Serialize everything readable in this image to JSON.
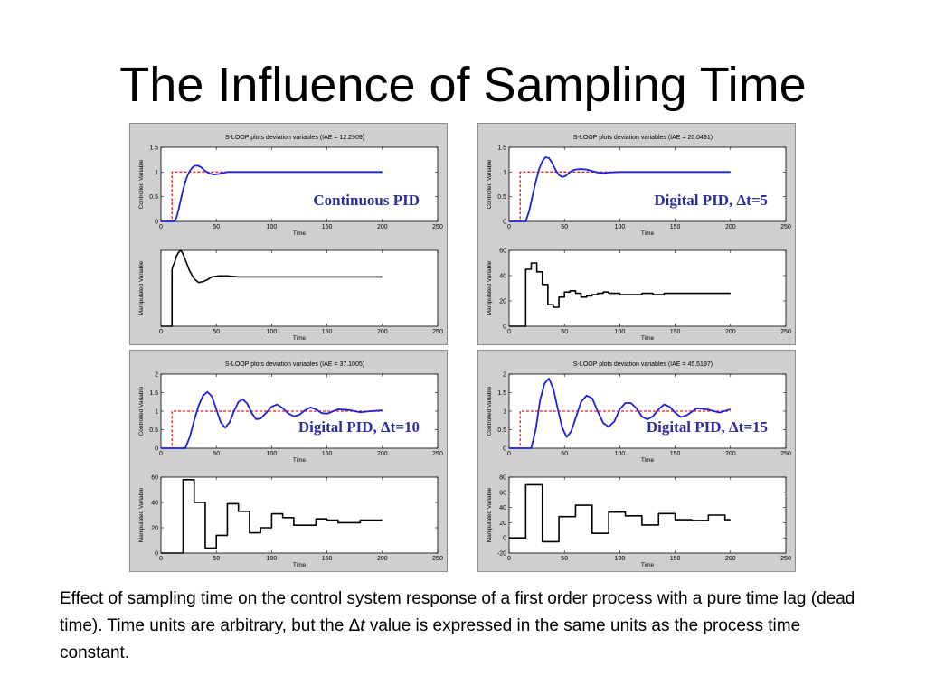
{
  "title": "The Influence of Sampling Time",
  "caption": {
    "part1": "Effect of sampling time on the control system response of a first order process with a pure time lag (dead time). Time units are arbitrary, but the Δ",
    "part2": "t",
    "part3": "  value is expressed in the same units as the process time constant."
  },
  "colors": {
    "controlled": "#1f1fd6",
    "setpoint": "#e02020",
    "manipulated": "#000000",
    "panel_bg": "#cfcfcf",
    "axes_bg": "#ffffff"
  },
  "chart_data": [
    {
      "type": "line",
      "panel_title": "S-LOOP plots deviation variables (IAE = 12.2909)",
      "annotation": "Continuous PID",
      "top": {
        "ylabel": "Controlled Variable",
        "xlabel": "Time",
        "xlim": [
          0,
          250
        ],
        "ylim": [
          0,
          1.5
        ],
        "xticks": [
          "0",
          "50",
          "100",
          "150",
          "200",
          "250"
        ],
        "yticks": [
          "0",
          "0.5",
          "1",
          "1.5"
        ],
        "setpoint": {
          "x": [
            0,
            10,
            10,
            200
          ],
          "y": [
            0,
            0,
            1,
            1
          ]
        },
        "controlled": {
          "x": [
            0,
            12,
            14,
            16,
            18,
            20,
            22,
            24,
            26,
            28,
            30,
            33,
            36,
            38,
            40,
            44,
            48,
            52,
            56,
            60,
            70,
            80,
            100,
            130,
            160,
            200
          ],
          "y": [
            0,
            0,
            0.08,
            0.25,
            0.45,
            0.64,
            0.8,
            0.93,
            1.02,
            1.08,
            1.12,
            1.13,
            1.1,
            1.06,
            1.02,
            0.97,
            0.95,
            0.96,
            0.98,
            1.0,
            1.0,
            1.0,
            1.0,
            1.0,
            1.0,
            1.0
          ]
        }
      },
      "bottom": {
        "ylabel": "Manipulated Variable",
        "xlabel": "Time",
        "xlim": [
          0,
          250
        ],
        "ylim": [
          0,
          40
        ],
        "xticks": [
          "0",
          "50",
          "100",
          "150",
          "200",
          "250"
        ],
        "yticks": [],
        "manipulated": {
          "x": [
            0,
            10,
            10,
            11,
            12,
            13,
            14,
            16,
            18,
            20,
            22,
            26,
            30,
            34,
            38,
            42,
            46,
            52,
            60,
            70,
            90,
            120,
            160,
            200
          ],
          "y": [
            0,
            0,
            30,
            32,
            33,
            35,
            37,
            39,
            40,
            38,
            35,
            29,
            25,
            23,
            23.5,
            24.5,
            26,
            26.5,
            26.5,
            26,
            26,
            26,
            26,
            26
          ]
        }
      }
    },
    {
      "type": "line",
      "panel_title": "S-LOOP plots deviation variables (IAE = 20.0491)",
      "annotation": "Digital PID, Δt=5",
      "top": {
        "ylabel": "Controlled Variable",
        "xlabel": "Time",
        "xlim": [
          0,
          250
        ],
        "ylim": [
          0,
          1.5
        ],
        "xticks": [
          "0",
          "50",
          "100",
          "150",
          "200",
          "250"
        ],
        "yticks": [
          "0",
          "0.5",
          "1",
          "1.5"
        ],
        "setpoint": {
          "x": [
            0,
            10,
            10,
            200
          ],
          "y": [
            0,
            0,
            1,
            1
          ]
        },
        "controlled": {
          "x": [
            0,
            15,
            18,
            21,
            24,
            27,
            30,
            33,
            36,
            39,
            42,
            45,
            48,
            51,
            54,
            57,
            60,
            65,
            70,
            75,
            80,
            85,
            90,
            100,
            110,
            120,
            140,
            160,
            200
          ],
          "y": [
            0,
            0,
            0.2,
            0.5,
            0.8,
            1.05,
            1.22,
            1.3,
            1.28,
            1.18,
            1.04,
            0.94,
            0.9,
            0.92,
            0.98,
            1.03,
            1.05,
            1.06,
            1.05,
            1.02,
            0.99,
            0.98,
            0.99,
            1.0,
            1.0,
            1.0,
            1.0,
            1.0,
            1.0
          ]
        }
      },
      "bottom": {
        "ylabel": "Manipulated Variable",
        "xlabel": "Time",
        "xlim": [
          0,
          250
        ],
        "ylim": [
          0,
          60
        ],
        "xticks": [
          "0",
          "50",
          "100",
          "150",
          "200",
          "250"
        ],
        "yticks": [
          "0",
          "20",
          "40",
          "60"
        ],
        "manipulated": {
          "steps": [
            [
              0,
              0
            ],
            [
              10,
              0
            ],
            [
              15,
              45
            ],
            [
              20,
              50
            ],
            [
              25,
              43
            ],
            [
              30,
              33
            ],
            [
              35,
              17
            ],
            [
              40,
              15
            ],
            [
              45,
              23
            ],
            [
              50,
              27
            ],
            [
              55,
              28
            ],
            [
              60,
              26
            ],
            [
              65,
              23
            ],
            [
              70,
              24
            ],
            [
              75,
              25
            ],
            [
              80,
              26
            ],
            [
              85,
              27
            ],
            [
              90,
              26
            ],
            [
              100,
              25
            ],
            [
              110,
              25
            ],
            [
              120,
              26
            ],
            [
              130,
              25
            ],
            [
              140,
              26
            ],
            [
              200,
              26
            ]
          ]
        }
      }
    },
    {
      "type": "line",
      "panel_title": "S-LOOP plots deviation variables (IAE = 37.1005)",
      "annotation": "Digital PID, Δt=10",
      "top": {
        "ylabel": "Controlled Variable",
        "xlabel": "Time",
        "xlim": [
          0,
          250
        ],
        "ylim": [
          0,
          2
        ],
        "xticks": [
          "0",
          "50",
          "100",
          "150",
          "200",
          "250"
        ],
        "yticks": [
          "0",
          "0.5",
          "1",
          "1.5",
          "2"
        ],
        "setpoint": {
          "x": [
            0,
            10,
            10,
            200
          ],
          "y": [
            0,
            0,
            1,
            1
          ]
        },
        "controlled": {
          "x": [
            0,
            22,
            26,
            30,
            34,
            38,
            42,
            46,
            50,
            54,
            58,
            62,
            66,
            70,
            74,
            78,
            82,
            86,
            90,
            95,
            100,
            105,
            110,
            115,
            120,
            125,
            130,
            135,
            140,
            145,
            150,
            160,
            170,
            180,
            190,
            200
          ],
          "y": [
            0,
            0,
            0.3,
            0.75,
            1.15,
            1.42,
            1.52,
            1.4,
            1.05,
            0.7,
            0.55,
            0.7,
            1.0,
            1.25,
            1.32,
            1.2,
            0.95,
            0.78,
            0.8,
            0.95,
            1.12,
            1.18,
            1.08,
            0.94,
            0.86,
            0.9,
            1.02,
            1.1,
            1.05,
            0.95,
            0.93,
            1.05,
            1.03,
            0.97,
            1.0,
            1.02
          ]
        }
      },
      "bottom": {
        "ylabel": "Manipulated Variable",
        "xlabel": "Time",
        "xlim": [
          0,
          250
        ],
        "ylim": [
          0,
          60
        ],
        "xticks": [
          "0",
          "50",
          "100",
          "150",
          "200",
          "250"
        ],
        "yticks": [
          "0",
          "20",
          "40",
          "60"
        ],
        "manipulated": {
          "steps": [
            [
              0,
              0
            ],
            [
              10,
              0
            ],
            [
              20,
              58
            ],
            [
              30,
              40
            ],
            [
              40,
              4
            ],
            [
              50,
              14
            ],
            [
              60,
              39
            ],
            [
              70,
              33
            ],
            [
              80,
              16
            ],
            [
              90,
              20
            ],
            [
              100,
              31
            ],
            [
              110,
              28
            ],
            [
              120,
              22
            ],
            [
              130,
              22
            ],
            [
              140,
              27
            ],
            [
              150,
              26
            ],
            [
              160,
              24
            ],
            [
              180,
              26
            ],
            [
              200,
              26
            ]
          ]
        }
      }
    },
    {
      "type": "line",
      "panel_title": "S-LOOP plots deviation variables (IAE = 45.5197)",
      "annotation": "Digital PID, Δt=15",
      "top": {
        "ylabel": "Controlled Variable",
        "xlabel": "Time",
        "xlim": [
          0,
          250
        ],
        "ylim": [
          0,
          2
        ],
        "xticks": [
          "0",
          "50",
          "100",
          "150",
          "200",
          "250"
        ],
        "yticks": [
          "0",
          "0.5",
          "1",
          "1.5",
          "2"
        ],
        "setpoint": {
          "x": [
            0,
            10,
            10,
            200
          ],
          "y": [
            0,
            0,
            1,
            1
          ]
        },
        "controlled": {
          "x": [
            0,
            20,
            24,
            28,
            32,
            36,
            40,
            44,
            48,
            52,
            56,
            60,
            65,
            70,
            75,
            80,
            85,
            90,
            95,
            100,
            105,
            110,
            115,
            120,
            125,
            130,
            135,
            140,
            145,
            150,
            155,
            160,
            170,
            180,
            190,
            200
          ],
          "y": [
            0,
            0,
            0.5,
            1.3,
            1.75,
            1.88,
            1.6,
            1.05,
            0.55,
            0.3,
            0.45,
            0.8,
            1.25,
            1.42,
            1.35,
            1.0,
            0.68,
            0.58,
            0.72,
            1.05,
            1.22,
            1.22,
            1.08,
            0.85,
            0.78,
            0.86,
            1.05,
            1.18,
            1.12,
            0.96,
            0.84,
            0.88,
            1.08,
            1.04,
            0.96,
            1.05
          ]
        }
      },
      "bottom": {
        "ylabel": "Manipulated Variable",
        "xlabel": "Time",
        "xlim": [
          0,
          250
        ],
        "ylim": [
          -20,
          80
        ],
        "xticks": [
          "0",
          "50",
          "100",
          "150",
          "200",
          "250"
        ],
        "yticks": [
          "-20",
          "0",
          "20",
          "40",
          "60",
          "80"
        ],
        "manipulated": {
          "steps": [
            [
              0,
              0
            ],
            [
              15,
              0
            ],
            [
              15,
              70
            ],
            [
              30,
              -5
            ],
            [
              45,
              28
            ],
            [
              60,
              43
            ],
            [
              75,
              6
            ],
            [
              90,
              34
            ],
            [
              105,
              29
            ],
            [
              120,
              17
            ],
            [
              135,
              32
            ],
            [
              150,
              24
            ],
            [
              165,
              23
            ],
            [
              180,
              30
            ],
            [
              195,
              24
            ],
            [
              200,
              24
            ]
          ]
        }
      }
    }
  ]
}
